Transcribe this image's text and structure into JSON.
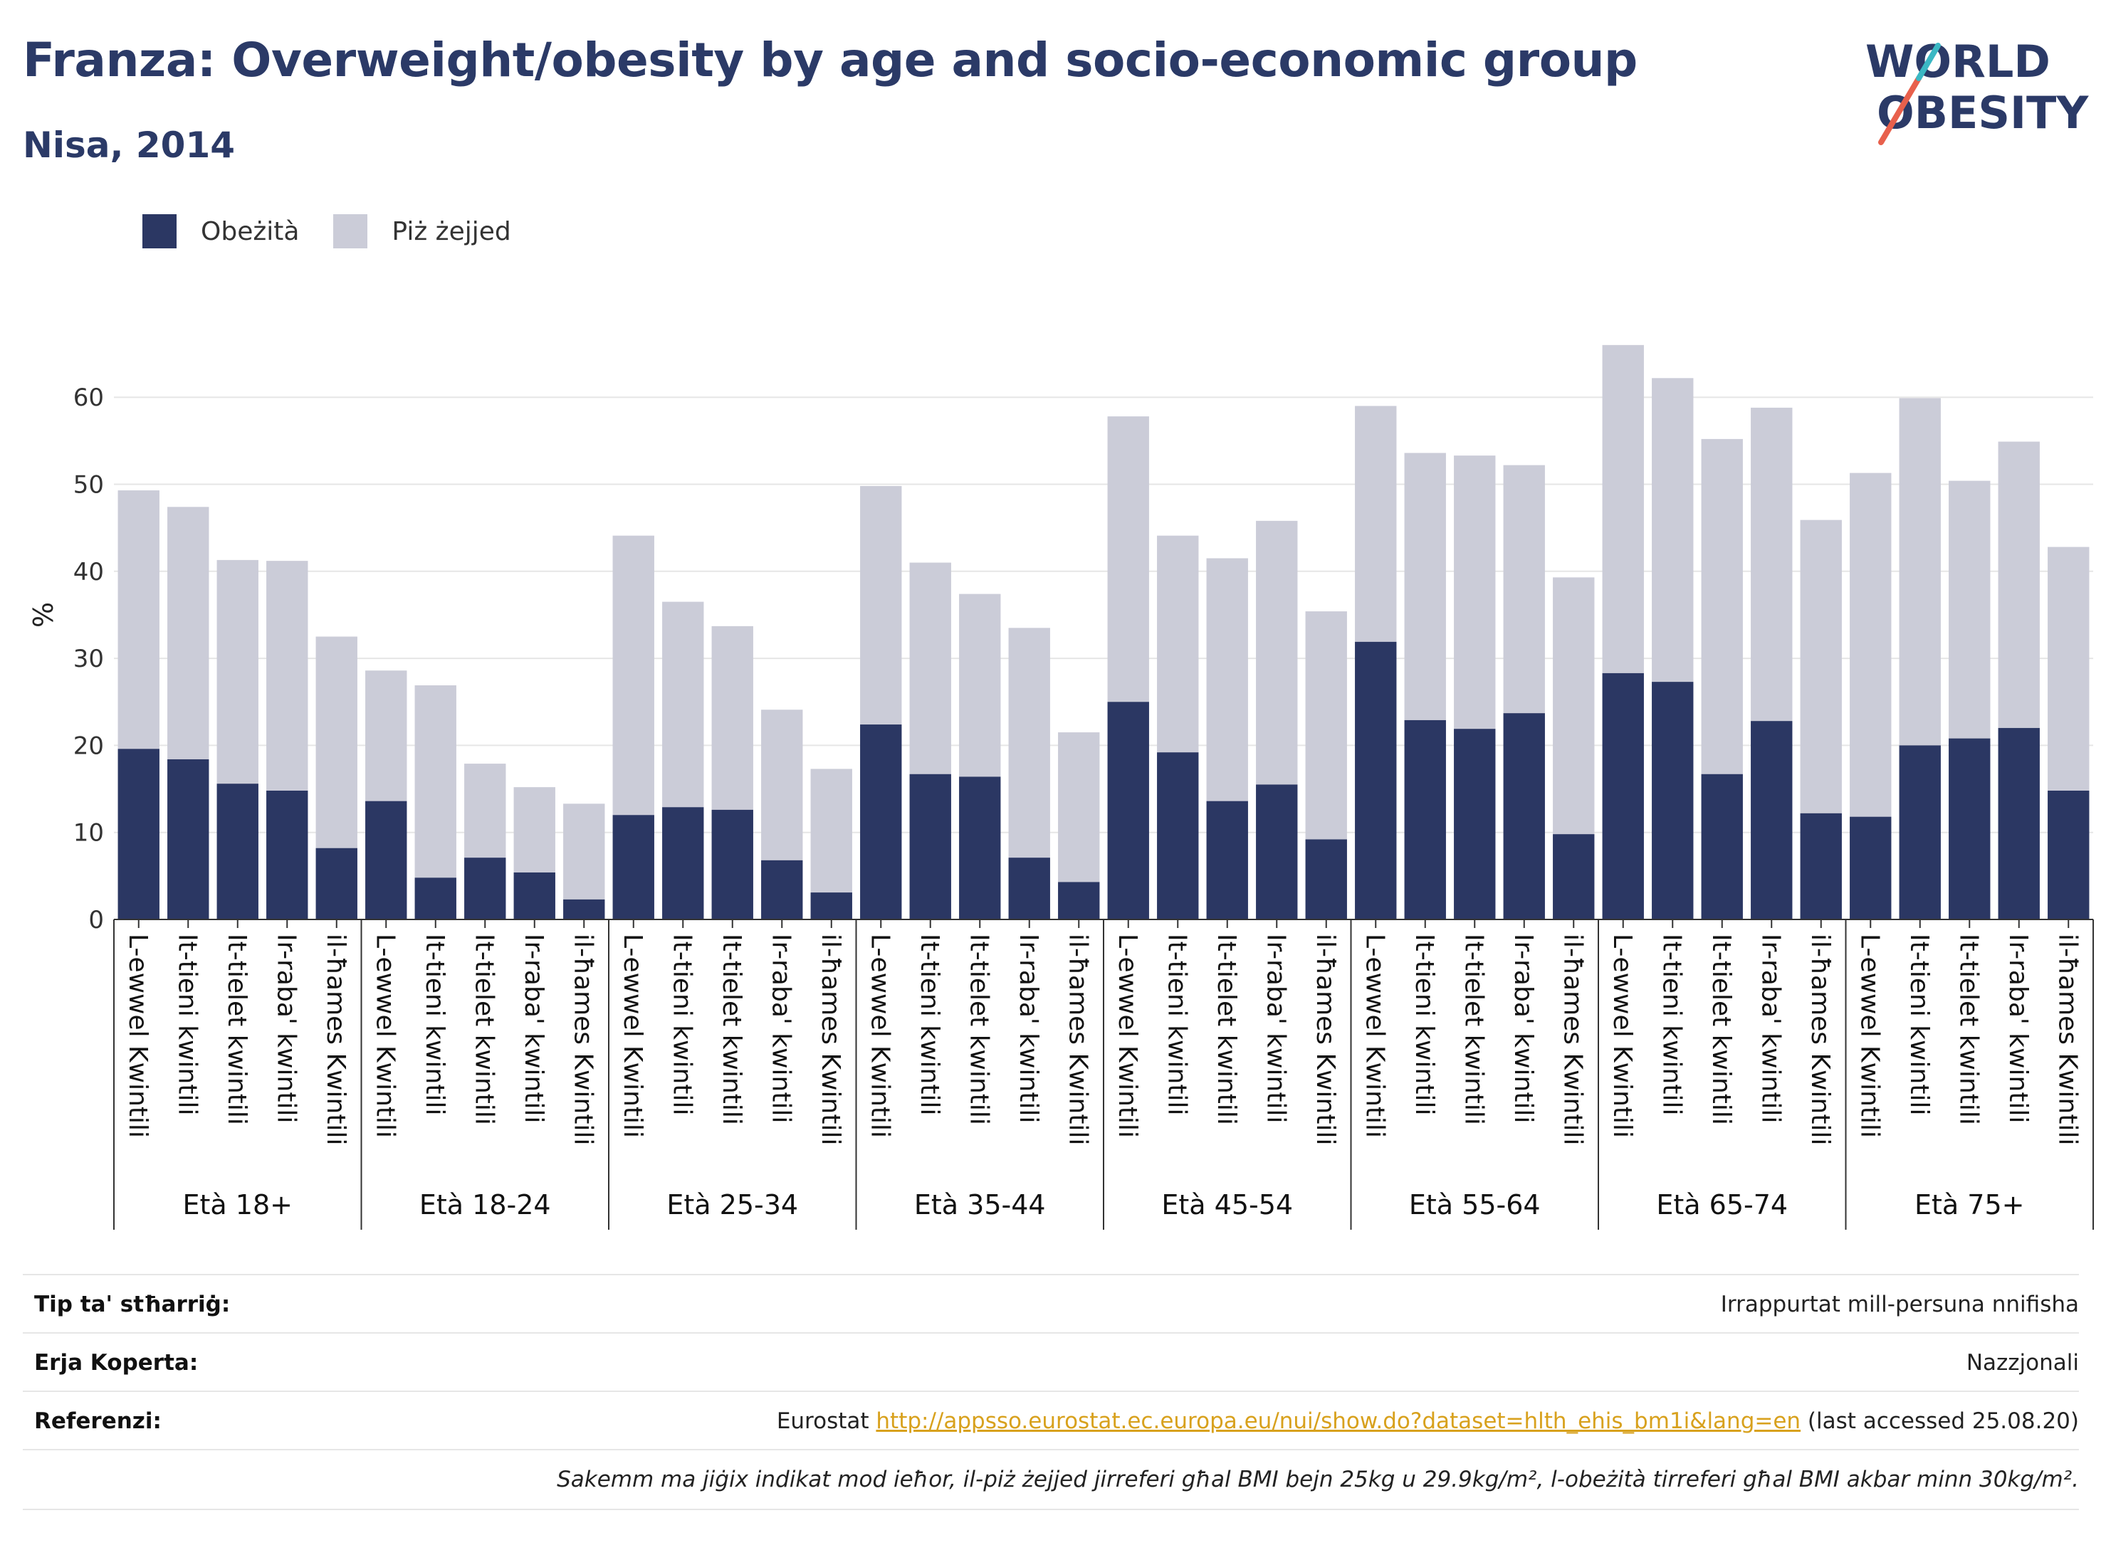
{
  "header": {
    "title": "Franza: Overweight/obesity by age and socio-economic group",
    "subtitle": "Nisa, 2014"
  },
  "logo": {
    "line1": "WORLD",
    "line2": "OBESITY",
    "accent": "#e8604c",
    "accent2": "#3bb8c4"
  },
  "colors": {
    "obesity": "#2b3763",
    "overweight": "#cbccd8",
    "grid": "#e6e6e6",
    "axis": "#333333"
  },
  "legend": [
    {
      "label": "Obeżità",
      "color": "#2b3763"
    },
    {
      "label": "Piż żejjed",
      "color": "#cbccd8"
    }
  ],
  "chart_data": {
    "type": "bar",
    "stacked": true,
    "ylabel": "%",
    "ylim": [
      0,
      70
    ],
    "yticks": [
      0,
      10,
      20,
      30,
      40,
      50,
      60
    ],
    "grid": true,
    "legend_position": "top-left",
    "group_names": [
      "Età 18+",
      "Età 18-24",
      "Età 25-34",
      "Età 35-44",
      "Età 45-54",
      "Età 55-64",
      "Età 65-74",
      "Età 75+"
    ],
    "quintile_labels": [
      "L-ewwel Kwintili",
      "It-tieni kwintili",
      "It-tielet kwintili",
      "Ir-raba' kwintili",
      "il-ħames Kwintili"
    ],
    "series": [
      {
        "name": "Obeżità",
        "values": [
          19.6,
          18.4,
          15.6,
          14.8,
          8.2,
          13.6,
          4.8,
          7.1,
          5.4,
          2.3,
          12.0,
          12.9,
          12.6,
          6.8,
          3.1,
          22.4,
          16.7,
          16.4,
          7.1,
          4.3,
          25.0,
          19.2,
          13.6,
          15.5,
          9.2,
          31.9,
          22.9,
          21.9,
          23.7,
          9.8,
          28.3,
          27.3,
          16.7,
          22.8,
          12.2,
          11.8,
          20.0,
          20.8,
          22.0,
          14.8
        ]
      },
      {
        "name": "Piż żejjed",
        "values": [
          29.7,
          29.0,
          25.7,
          26.4,
          24.3,
          15.0,
          22.1,
          10.8,
          9.8,
          11.0,
          32.1,
          23.6,
          21.1,
          17.3,
          14.2,
          27.4,
          24.3,
          21.0,
          26.4,
          17.2,
          32.8,
          24.9,
          27.9,
          30.3,
          26.2,
          27.1,
          30.7,
          31.4,
          28.5,
          29.5,
          37.7,
          34.9,
          38.5,
          36.0,
          33.7,
          39.5,
          39.9,
          29.6,
          32.9,
          28.0
        ]
      }
    ]
  },
  "info": {
    "rows": [
      {
        "key": "Tip ta' stħarriġ:",
        "value": "Irrappurtat mill-persuna nnifisha"
      },
      {
        "key": "Erja Koperta:",
        "value": "Nazzjonali"
      },
      {
        "key": "Referenzi:",
        "value_prefix": "Eurostat ",
        "link": "http://appsso.eurostat.ec.europa.eu/nui/show.do?dataset=hlth_ehis_bm1i&lang=en",
        "value_suffix": " (last accessed 25.08.20)"
      }
    ],
    "note": "Sakemm ma jiġix indikat mod ieħor, il-piż żejjed jirreferi għal BMI bejn 25kg u 29.9kg/m², l-obeżità tirreferi għal BMI akbar minn 30kg/m²."
  }
}
